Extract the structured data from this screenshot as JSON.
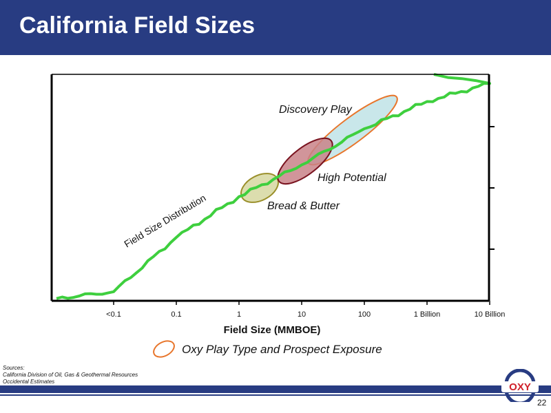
{
  "header": {
    "title": "California Field Sizes"
  },
  "chart_data": {
    "type": "line",
    "xlabel": "Field Size (MMBOE)",
    "ylabel": "",
    "x_scale": "log",
    "tick_labels": [
      "<0.1",
      "0.1",
      "1",
      "10",
      "100",
      "1 Billion",
      "10 Billion"
    ],
    "grid": false,
    "series": [
      {
        "name": "Field Size Distribution",
        "color": "#3ecf3e",
        "x": [
          "<0.1",
          "0.1",
          "1",
          "10",
          "100",
          "1 Billion",
          "10 Billion"
        ],
        "y": [
          0.04,
          0.28,
          0.46,
          0.6,
          0.76,
          0.88,
          0.96
        ]
      }
    ],
    "annotations": [
      {
        "label": "Bread & Butter",
        "range": [
          "1",
          "10"
        ],
        "fill": "#d6d7a0",
        "stroke": "#9a8f2a"
      },
      {
        "label": "High Potential",
        "range": [
          "10",
          "100"
        ],
        "fill": "#c98288",
        "stroke": "#7a1420"
      },
      {
        "label": "Discovery Play",
        "range": [
          "10",
          "1 Billion"
        ],
        "fill": "#bfe3e6",
        "stroke": "#e8762c"
      }
    ],
    "curve_label": "Field Size Distribution"
  },
  "legend": {
    "label": "Oxy Play Type and Prospect Exposure",
    "color": "#e8762c"
  },
  "sources": {
    "heading": "Sources:",
    "lines": [
      "California Division of Oil, Gas & Geothermal Resources",
      "Occidental Estimates"
    ]
  },
  "logo": {
    "text": "OXY",
    "color": "#d0202a"
  },
  "page_number": "22"
}
